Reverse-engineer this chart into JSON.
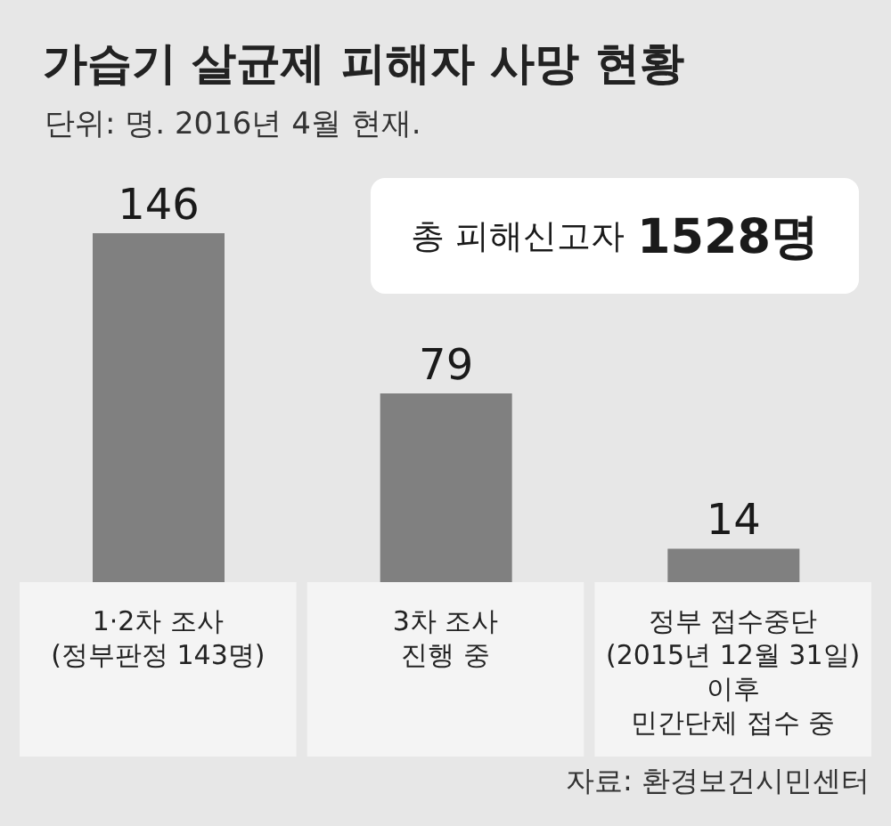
{
  "chart_data": {
    "type": "bar",
    "title": "가습기 살균제 피해자 사망 현황",
    "subtitle": "단위: 명. 2016년 4월 현재.",
    "categories": [
      "1·2차 조사\n(정부판정 143명)",
      "3차 조사\n진행 중",
      "정부 접수중단\n(2015년 12월 31일) 이후\n민간단체 접수 중"
    ],
    "values": [
      146,
      79,
      14
    ],
    "color": "#808080",
    "data_labels": true,
    "annotations": [
      "총 피해신고자 1528명",
      "자료: 환경보건시민센터"
    ]
  }
}
